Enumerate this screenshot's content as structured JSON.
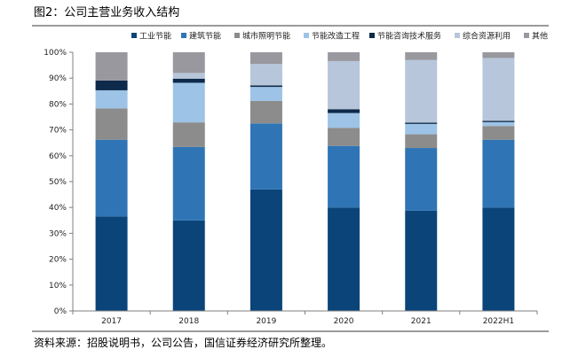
{
  "header": {
    "title": "图2：公司主营业务收入结构"
  },
  "footer": {
    "source": "资料来源：招股说明书，公司公告，国信证券经济研究所整理。"
  },
  "chart_data": {
    "type": "bar",
    "stacked": true,
    "categories": [
      "2017",
      "2018",
      "2019",
      "2020",
      "2021",
      "2022H1"
    ],
    "ylim": [
      0,
      100
    ],
    "yticks": [
      "0%",
      "10%",
      "20%",
      "30%",
      "40%",
      "50%",
      "60%",
      "70%",
      "80%",
      "90%",
      "100%"
    ],
    "grid": false,
    "legend_position": "top",
    "series": [
      {
        "name": "工业节能",
        "color": "#0a4479",
        "values": [
          36.5,
          35.0,
          47.0,
          40.0,
          38.8,
          40.0
        ]
      },
      {
        "name": "建筑节能",
        "color": "#2f75b5",
        "values": [
          29.7,
          28.4,
          25.5,
          23.8,
          24.2,
          26.2
        ]
      },
      {
        "name": "城市照明节能",
        "color": "#8c8c8c",
        "values": [
          12.1,
          9.5,
          8.7,
          7.0,
          5.3,
          5.3
        ]
      },
      {
        "name": "节能改造工程",
        "color": "#9dc3e6",
        "values": [
          7.0,
          15.3,
          5.4,
          5.7,
          4.0,
          1.5
        ]
      },
      {
        "name": "节能咨询技术服务",
        "color": "#0d2a4a",
        "values": [
          3.8,
          1.6,
          0.6,
          1.5,
          0.5,
          0.5
        ]
      },
      {
        "name": "综合资源利用",
        "color": "#b7c6da",
        "values": [
          0.0,
          2.2,
          8.3,
          18.6,
          24.2,
          24.3
        ]
      },
      {
        "name": "其他",
        "color": "#98989e",
        "values": [
          10.9,
          8.0,
          4.5,
          3.4,
          3.0,
          2.2
        ]
      }
    ]
  }
}
